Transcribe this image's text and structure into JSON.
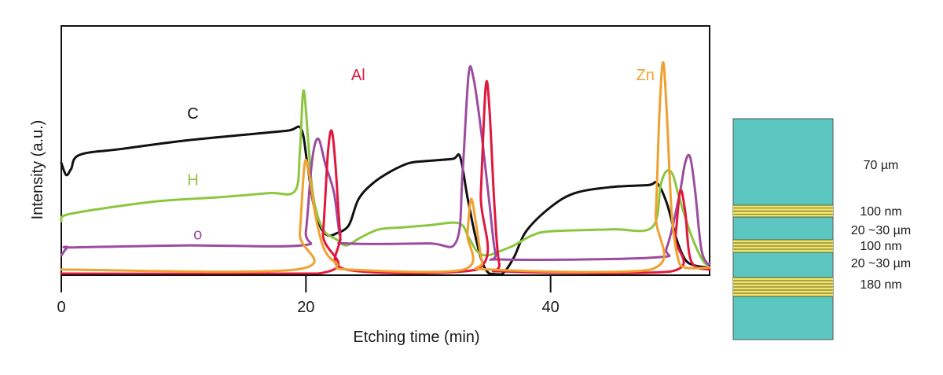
{
  "chart_data": {
    "type": "line",
    "title": "",
    "xlabel": "Etching time (min)",
    "ylabel": "Intensity (a.u.)",
    "xlim": [
      0,
      53
    ],
    "ylim": [
      0,
      1
    ],
    "x_ticks": [
      0,
      20,
      40
    ],
    "x_tick_labels": [
      "0",
      "20",
      "40"
    ],
    "grid": false,
    "legend": "inline labels next to curves",
    "series": [
      {
        "name": "C",
        "color": "#111111",
        "points": [
          [
            0,
            0.55
          ],
          [
            0.4,
            0.49
          ],
          [
            0.8,
            0.52
          ],
          [
            1.5,
            0.59
          ],
          [
            5,
            0.62
          ],
          [
            10,
            0.66
          ],
          [
            15,
            0.69
          ],
          [
            18.5,
            0.71
          ],
          [
            19.6,
            0.72
          ],
          [
            20.1,
            0.55
          ],
          [
            20.6,
            0.35
          ],
          [
            21.2,
            0.23
          ],
          [
            21.8,
            0.19
          ],
          [
            22.5,
            0.2
          ],
          [
            23.5,
            0.24
          ],
          [
            24.3,
            0.37
          ],
          [
            25.5,
            0.45
          ],
          [
            27,
            0.51
          ],
          [
            28.5,
            0.55
          ],
          [
            30,
            0.56
          ],
          [
            32,
            0.57
          ],
          [
            32.6,
            0.58
          ],
          [
            33.2,
            0.38
          ],
          [
            33.8,
            0.2
          ],
          [
            34.4,
            0.06
          ],
          [
            35,
            0.0
          ],
          [
            36,
            -0.02
          ],
          [
            37,
            0.08
          ],
          [
            38,
            0.21
          ],
          [
            40,
            0.33
          ],
          [
            42,
            0.4
          ],
          [
            45,
            0.43
          ],
          [
            48,
            0.44
          ],
          [
            48.7,
            0.45
          ],
          [
            49.5,
            0.35
          ],
          [
            50.3,
            0.17
          ],
          [
            51,
            0.07
          ],
          [
            51.8,
            0.04
          ],
          [
            53,
            0.03
          ]
        ],
        "label_anchor": [
          10.3,
          0.77
        ]
      },
      {
        "name": "H",
        "color": "#8cc63f",
        "points": [
          [
            0,
            0.26
          ],
          [
            0.3,
            0.29
          ],
          [
            3,
            0.32
          ],
          [
            8,
            0.36
          ],
          [
            13,
            0.38
          ],
          [
            17,
            0.4
          ],
          [
            19.1,
            0.41
          ],
          [
            19.5,
            0.6
          ],
          [
            19.8,
            0.91
          ],
          [
            20.2,
            0.65
          ],
          [
            20.6,
            0.38
          ],
          [
            21.4,
            0.22
          ],
          [
            22.5,
            0.17
          ],
          [
            23.3,
            0.14
          ],
          [
            24.5,
            0.18
          ],
          [
            26,
            0.22
          ],
          [
            28,
            0.23
          ],
          [
            30,
            0.24
          ],
          [
            32.5,
            0.25
          ],
          [
            33.3,
            0.18
          ],
          [
            34,
            0.11
          ],
          [
            34.8,
            0.09
          ],
          [
            35.8,
            0.11
          ],
          [
            37,
            0.14
          ],
          [
            38.5,
            0.19
          ],
          [
            40,
            0.21
          ],
          [
            45,
            0.22
          ],
          [
            48.3,
            0.23
          ],
          [
            49,
            0.44
          ],
          [
            49.5,
            0.51
          ],
          [
            50,
            0.49
          ],
          [
            50.5,
            0.38
          ],
          [
            51.5,
            0.19
          ],
          [
            52.5,
            0.06
          ],
          [
            53,
            0.05
          ]
        ],
        "label_anchor": [
          10.3,
          0.44
        ]
      },
      {
        "name": "o",
        "color": "#9b4d9e",
        "points": [
          [
            0,
            0.09
          ],
          [
            0.5,
            0.13
          ],
          [
            1,
            0.13
          ],
          [
            10,
            0.14
          ],
          [
            19.6,
            0.14
          ],
          [
            20,
            0.21
          ],
          [
            20.5,
            0.56
          ],
          [
            21,
            0.67
          ],
          [
            21.6,
            0.54
          ],
          [
            22.3,
            0.4
          ],
          [
            22.8,
            0.18
          ],
          [
            23.3,
            0.15
          ],
          [
            30,
            0.15
          ],
          [
            32.3,
            0.16
          ],
          [
            32.8,
            0.5
          ],
          [
            33.3,
            0.99
          ],
          [
            33.7,
            0.97
          ],
          [
            34.3,
            0.72
          ],
          [
            35,
            0.35
          ],
          [
            35.5,
            0.1
          ],
          [
            36.2,
            0.07
          ],
          [
            48.5,
            0.08
          ],
          [
            49.5,
            0.13
          ],
          [
            50.5,
            0.38
          ],
          [
            51,
            0.55
          ],
          [
            51.4,
            0.58
          ],
          [
            51.8,
            0.42
          ],
          [
            52.3,
            0.13
          ],
          [
            52.8,
            0.05
          ],
          [
            53,
            0.05
          ]
        ],
        "label_anchor": [
          10.8,
          0.17
        ]
      },
      {
        "name": "Al",
        "color": "#e0183e",
        "points": [
          [
            0,
            0.0
          ],
          [
            21,
            0.0
          ],
          [
            21.4,
            0.2
          ],
          [
            21.8,
            0.6
          ],
          [
            22.1,
            0.71
          ],
          [
            22.4,
            0.55
          ],
          [
            22.8,
            0.2
          ],
          [
            23.3,
            0.02
          ],
          [
            34,
            0.02
          ],
          [
            34.3,
            0.4
          ],
          [
            34.7,
            0.93
          ],
          [
            35,
            0.82
          ],
          [
            35.4,
            0.35
          ],
          [
            35.8,
            0.05
          ],
          [
            36.5,
            0.01
          ],
          [
            49.8,
            0.01
          ],
          [
            50.2,
            0.18
          ],
          [
            50.6,
            0.41
          ],
          [
            51,
            0.31
          ],
          [
            51.5,
            0.06
          ],
          [
            53,
            0.02
          ]
        ],
        "label_anchor": [
          23.7,
          0.96
        ]
      },
      {
        "name": "Zn",
        "color": "#f0a030",
        "points": [
          [
            0,
            0.02
          ],
          [
            19.2,
            0.02
          ],
          [
            19.5,
            0.2
          ],
          [
            19.9,
            0.55
          ],
          [
            20.3,
            0.48
          ],
          [
            20.8,
            0.28
          ],
          [
            21.5,
            0.12
          ],
          [
            22.5,
            0.05
          ],
          [
            23.5,
            0.02
          ],
          [
            32.9,
            0.02
          ],
          [
            33.2,
            0.2
          ],
          [
            33.5,
            0.37
          ],
          [
            33.9,
            0.25
          ],
          [
            34.4,
            0.06
          ],
          [
            35,
            0.02
          ],
          [
            48.2,
            0.02
          ],
          [
            48.6,
            0.3
          ],
          [
            48.9,
            0.8
          ],
          [
            49.2,
            1.05
          ],
          [
            49.5,
            0.8
          ],
          [
            49.9,
            0.3
          ],
          [
            50.4,
            0.08
          ],
          [
            51,
            0.03
          ],
          [
            53,
            0.03
          ]
        ],
        "label_anchor": [
          47.0,
          0.96
        ]
      }
    ]
  },
  "layer_stack": {
    "substrate_color": "#5cc6c0",
    "film_color": "#f0e46a",
    "film_line_color": "#3a3a10",
    "labels": [
      "70 µm",
      "100 nm",
      "20 ~30 µm",
      "100 nm",
      "20 ~30 µm",
      "180 nm"
    ]
  }
}
